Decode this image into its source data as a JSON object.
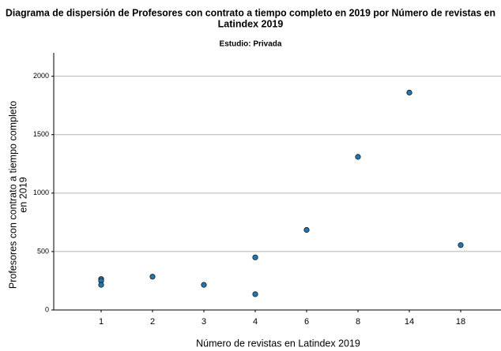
{
  "chart_data": {
    "type": "scatter",
    "title": [
      "Diagrama de dispersión de Profesores con contrato a tiempo completo en 2019 por Número de revistas en",
      "Latindex 2019"
    ],
    "subtitle": "Estudio: Privada",
    "x_label": "Número de revistas en Latindex 2019",
    "y_label": [
      "Profesores con contrato a tiempo completo",
      "en 2019"
    ],
    "categories": [
      "1",
      "2",
      "3",
      "4",
      "6",
      "8",
      "14",
      "18"
    ],
    "x": [
      "1",
      "1",
      "1",
      "2",
      "3",
      "4",
      "4",
      "6",
      "8",
      "14",
      "18"
    ],
    "values": [
      265,
      250,
      215,
      285,
      215,
      450,
      135,
      685,
      1310,
      1860,
      555
    ],
    "color": "#1f78b4",
    "ylim": [
      0,
      2200
    ],
    "yticks": [
      0,
      500,
      1000,
      1500,
      2000
    ],
    "grid": true
  }
}
